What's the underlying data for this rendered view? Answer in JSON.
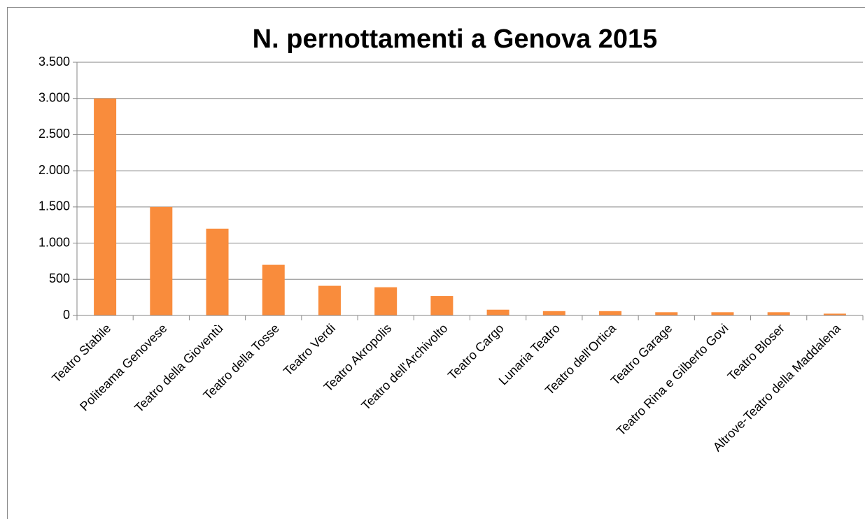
{
  "chart_data": {
    "type": "bar",
    "title": "N. pernottamenti a Genova 2015",
    "categories": [
      "Teatro Stabile",
      "Politeama Genovese",
      "Teatro della Gioventù",
      "Teatro della Tosse",
      "Teatro Verdi",
      "Teatro Akropolis",
      "Teatro dell'Archivolto",
      "Teatro Cargo",
      "Lunaria Teatro",
      "Teatro dell'Ortica",
      "Teatro Garage",
      "Teatro Rina e Gilberto Govi",
      "Teatro Bloser",
      "Altrove-Teatro della Maddalena"
    ],
    "values": [
      3000,
      1500,
      1200,
      700,
      410,
      390,
      270,
      80,
      60,
      60,
      45,
      45,
      45,
      25
    ],
    "color": "#f98c3c",
    "ylim": [
      0,
      3500
    ],
    "yticks": [
      0,
      500,
      {
        "value": 1000,
        "label": "1.000"
      },
      {
        "value": 1500,
        "label": "1.500"
      },
      {
        "value": 2000,
        "label": "2.000"
      },
      {
        "value": 2500,
        "label": "2.500"
      },
      {
        "value": 3000,
        "label": "3.000"
      },
      {
        "value": 3500,
        "label": "3.500"
      }
    ],
    "grid": true
  }
}
